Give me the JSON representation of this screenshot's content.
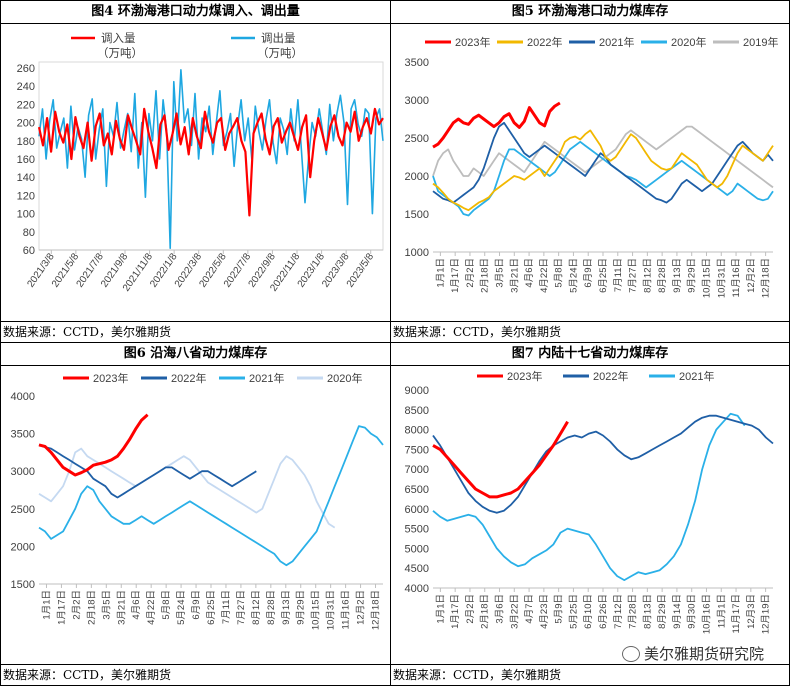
{
  "watermark": "美尔雅期货研究院",
  "chart_data": [
    {
      "type": "line",
      "title": "图4 环渤海港口动力煤调入、调出量",
      "source": "数据来源：CCTD，美尔雅期货",
      "ylim": [
        60,
        260
      ],
      "yticks": [
        "260",
        "240",
        "220",
        "200",
        "180",
        "160",
        "140",
        "120",
        "100",
        "80",
        "60"
      ],
      "xticks": [
        "2021/3/8",
        "2021/5/8",
        "2021/7/8",
        "2021/9/8",
        "2021/11/8",
        "2022/1/8",
        "2022/3/8",
        "2022/5/8",
        "2022/7/8",
        "2022/9/8",
        "2022/11/8",
        "2023/1/8",
        "2023/3/8",
        "2023/5/8"
      ],
      "legend": [
        {
          "label": "调入量",
          "unit": "（万吨）",
          "color": "#ff0000"
        },
        {
          "label": "调出量",
          "unit": "（万吨）",
          "color": "#1ea7e1"
        }
      ],
      "series": [
        {
          "name": "调入量",
          "color": "#ff0000",
          "width": 2.2,
          "values": [
            195,
            175,
            205,
            168,
            212,
            190,
            178,
            198,
            160,
            206,
            185,
            172,
            200,
            158,
            196,
            210,
            175,
            188,
            165,
            202,
            182,
            170,
            208,
            193,
            180,
            165,
            215,
            190,
            172,
            150,
            198,
            208,
            170,
            188,
            210,
            176,
            195,
            165,
            205,
            185,
            172,
            212,
            190,
            178,
            200,
            205,
            170,
            188,
            196,
            205,
            180,
            168,
            98,
            188,
            200,
            210,
            182,
            165,
            196,
            205,
            178,
            190,
            200,
            185,
            170,
            195,
            208,
            140,
            180,
            205,
            188,
            170,
            196,
            208,
            185,
            175,
            200,
            190,
            212,
            180,
            195,
            205,
            188,
            215,
            198,
            205
          ]
        },
        {
          "name": "调出量",
          "color": "#1ea7e1",
          "width": 1.6,
          "values": [
            185,
            215,
            160,
            202,
            225,
            172,
            190,
            205,
            150,
            218,
            170,
            195,
            182,
            140,
            208,
            226,
            160,
            193,
            215,
            130,
            200,
            185,
            222,
            172,
            192,
            210,
            168,
            232,
            150,
            200,
            118,
            210,
            180,
            235,
            160,
            225,
            190,
            62,
            245,
            180,
            258,
            200,
            215,
            175,
            232,
            160,
            205,
            190,
            218,
            165,
            200,
            235,
            175,
            190,
            210,
            152,
            196,
            225,
            180,
            205,
            160,
            218,
            190,
            170,
            203,
            225,
            178,
            155,
            205,
            192,
            165,
            215,
            180,
            225,
            170,
            112,
            160,
            200,
            185,
            215,
            190,
            165,
            220,
            180,
            210,
            230,
            200,
            110,
            215,
            225,
            198,
            185,
            215,
            210,
            100,
            205,
            215,
            180
          ]
        }
      ]
    },
    {
      "type": "line",
      "title": "图5 环渤海港口动力煤库存",
      "source": "数据来源：CCTD，美尔雅期货",
      "ylim": [
        1000,
        3500
      ],
      "yticks": [
        "3500",
        "3000",
        "2500",
        "2000",
        "1500",
        "1000"
      ],
      "xticks": [
        "1月1日",
        "1月17日",
        "2月2日",
        "2月18日",
        "3月5日",
        "3月21日",
        "4月6日",
        "4月22日",
        "5月8日",
        "5月24日",
        "6月9日",
        "6月25日",
        "7月11日",
        "7月27日",
        "8月12日",
        "8月28日",
        "9月13日",
        "9月29日",
        "10月15日",
        "10月31日",
        "11月16日",
        "12月2日",
        "12月18日"
      ],
      "series": [
        {
          "name": "2023年",
          "color": "#ff0000",
          "width": 3,
          "values": [
            2380,
            2420,
            2500,
            2600,
            2700,
            2750,
            2700,
            2680,
            2760,
            2800,
            2750,
            2700,
            2650,
            2700,
            2780,
            2820,
            2700,
            2640,
            2720,
            2900,
            2800,
            2700,
            2660,
            2850,
            2920,
            2960
          ]
        },
        {
          "name": "2022年",
          "color": "#f2b800",
          "width": 1.8,
          "values": [
            1900,
            1850,
            1780,
            1700,
            1650,
            1620,
            1580,
            1550,
            1600,
            1650,
            1680,
            1720,
            1800,
            1850,
            1900,
            1950,
            2000,
            1980,
            1950,
            2000,
            2050,
            2100,
            2000,
            2100,
            2200,
            2300,
            2450,
            2500,
            2520,
            2480,
            2550,
            2600,
            2500,
            2400,
            2250,
            2200,
            2250,
            2350,
            2450,
            2550,
            2500,
            2400,
            2300,
            2200,
            2150,
            2100,
            2080,
            2100,
            2200,
            2300,
            2250,
            2200,
            2150,
            2050,
            1950,
            1900,
            1850,
            1900,
            2000,
            2150,
            2300,
            2400,
            2350,
            2300,
            2250,
            2200,
            2300,
            2400
          ]
        },
        {
          "name": "2021年",
          "color": "#1f5fa6",
          "width": 1.8,
          "values": [
            1800,
            1750,
            1700,
            1680,
            1650,
            1700,
            1750,
            1800,
            1850,
            1950,
            2100,
            2300,
            2500,
            2650,
            2700,
            2600,
            2500,
            2400,
            2300,
            2250,
            2300,
            2350,
            2400,
            2350,
            2300,
            2250,
            2200,
            2150,
            2100,
            2050,
            2000,
            2100,
            2200,
            2300,
            2250,
            2150,
            2100,
            2050,
            2000,
            1950,
            1900,
            1850,
            1800,
            1750,
            1700,
            1680,
            1650,
            1700,
            1800,
            1900,
            1950,
            1900,
            1850,
            1800,
            1850,
            1900,
            2000,
            2100,
            2200,
            2300,
            2400,
            2450,
            2380,
            2300,
            2250,
            2200,
            2280,
            2200
          ]
        },
        {
          "name": "2020年",
          "color": "#2ab0e8",
          "width": 1.8,
          "values": [
            2000,
            1800,
            1750,
            1700,
            1650,
            1600,
            1500,
            1480,
            1550,
            1600,
            1650,
            1700,
            1800,
            2000,
            2200,
            2350,
            2350,
            2300,
            2250,
            2200,
            2150,
            2100,
            2050,
            2000,
            2050,
            2150,
            2250,
            2350,
            2400,
            2450,
            2400,
            2350,
            2300,
            2250,
            2200,
            2150,
            2100,
            2050,
            2000,
            1980,
            1950,
            1900,
            1850,
            1900,
            1950,
            2000,
            2050,
            2100,
            2150,
            2200,
            2150,
            2100,
            2050,
            2000,
            1950,
            1900,
            1850,
            1800,
            1750,
            1800,
            1900,
            1850,
            1800,
            1750,
            1700,
            1680,
            1700,
            1800
          ]
        },
        {
          "name": "2019年",
          "color": "#bdbdbd",
          "width": 1.8,
          "values": [
            2000,
            2200,
            2300,
            2350,
            2200,
            2100,
            2000,
            2000,
            2100,
            2050,
            2000,
            2100,
            2200,
            2300,
            2250,
            2200,
            2150,
            2100,
            2050,
            2150,
            2250,
            2350,
            2450,
            2400,
            2350,
            2300,
            2250,
            2200,
            2150,
            2100,
            2050,
            2100,
            2150,
            2200,
            2250,
            2300,
            2350,
            2450,
            2550,
            2600,
            2550,
            2500,
            2450,
            2400,
            2350,
            2400,
            2450,
            2500,
            2550,
            2600,
            2650,
            2650,
            2600,
            2550,
            2500,
            2450,
            2400,
            2350,
            2300,
            2250,
            2200,
            2150,
            2100,
            2050,
            2000,
            1950,
            1900,
            1850
          ]
        }
      ]
    },
    {
      "type": "line",
      "title": "图6 沿海八省动力煤库存",
      "source": "数据来源：CCTD，美尔雅期货",
      "ylim": [
        1500,
        4000
      ],
      "yticks": [
        "4000",
        "3500",
        "3000",
        "2500",
        "2000",
        "1500"
      ],
      "xticks": [
        "1月1日",
        "1月17日",
        "2月2日",
        "2月18日",
        "3月5日",
        "3月21日",
        "4月6日",
        "4月22日",
        "5月8日",
        "5月24日",
        "6月9日",
        "6月25日",
        "7月11日",
        "7月27日",
        "8月12日",
        "8月28日",
        "9月13日",
        "9月29日",
        "10月15日",
        "10月31日",
        "11月16日",
        "12月2日",
        "12月18日"
      ],
      "series": [
        {
          "name": "2023年",
          "color": "#ff0000",
          "width": 3,
          "values": [
            3350,
            3330,
            3250,
            3150,
            3050,
            3000,
            2950,
            2980,
            3020,
            3080,
            3100,
            3120,
            3150,
            3200,
            3300,
            3420,
            3560,
            3680,
            3750
          ]
        },
        {
          "name": "2022年",
          "color": "#1f5fa6",
          "width": 1.8,
          "values": [
            3350,
            3320,
            3300,
            3250,
            3200,
            3150,
            3100,
            3050,
            3000,
            2900,
            2850,
            2800,
            2700,
            2650,
            2700,
            2750,
            2800,
            2850,
            2900,
            2950,
            3000,
            3050,
            3050,
            3000,
            2950,
            2900,
            2950,
            3000,
            3000,
            2950,
            2900,
            2850,
            2800,
            2850,
            2900,
            2950,
            3000
          ]
        },
        {
          "name": "2021年",
          "color": "#2ab0e8",
          "width": 1.8,
          "values": [
            2250,
            2200,
            2100,
            2150,
            2200,
            2350,
            2500,
            2700,
            2800,
            2750,
            2600,
            2500,
            2400,
            2350,
            2300,
            2300,
            2350,
            2400,
            2350,
            2300,
            2350,
            2400,
            2450,
            2500,
            2550,
            2600,
            2550,
            2500,
            2450,
            2400,
            2350,
            2300,
            2250,
            2200,
            2150,
            2100,
            2050,
            2000,
            1950,
            1900,
            1800,
            1750,
            1800,
            1900,
            2000,
            2100,
            2200,
            2400,
            2600,
            2800,
            3000,
            3200,
            3400,
            3600,
            3580,
            3500,
            3450,
            3350
          ]
        },
        {
          "name": "2020年",
          "color": "#c5d9f1",
          "width": 1.8,
          "values": [
            2700,
            2650,
            2600,
            2700,
            2800,
            3000,
            3250,
            3300,
            3200,
            3150,
            3100,
            3050,
            3000,
            2950,
            2900,
            2850,
            2800,
            2850,
            2900,
            2950,
            3000,
            3050,
            3100,
            3150,
            3200,
            3150,
            3050,
            2950,
            2850,
            2800,
            2750,
            2700,
            2650,
            2600,
            2550,
            2500,
            2450,
            2500,
            2700,
            2900,
            3100,
            3200,
            3150,
            3050,
            2950,
            2800,
            2600,
            2450,
            2300,
            2250
          ]
        }
      ]
    },
    {
      "type": "line",
      "title": "图7 内陆十七省动力煤库存",
      "source": "数据来源：CCTD，美尔雅期货",
      "ylim": [
        4000,
        9000
      ],
      "yticks": [
        "9000",
        "8500",
        "8000",
        "7500",
        "7000",
        "6500",
        "6000",
        "5500",
        "5000",
        "4500",
        "4000"
      ],
      "xticks": [
        "1月1日",
        "1月17日",
        "2月2日",
        "2月18日",
        "3月6日",
        "3月22日",
        "4月7日",
        "4月23日",
        "5月9日",
        "5月25日",
        "6月10日",
        "6月26日",
        "7月12日",
        "7月28日",
        "8月13日",
        "8月29日",
        "9月14日",
        "9月30日",
        "10月16日",
        "11月1日",
        "11月17日",
        "12月3日",
        "12月19日"
      ],
      "series": [
        {
          "name": "2023年",
          "color": "#ff0000",
          "width": 3,
          "values": [
            7600,
            7500,
            7300,
            7100,
            6900,
            6700,
            6500,
            6400,
            6300,
            6300,
            6350,
            6400,
            6500,
            6700,
            6900,
            7100,
            7350,
            7600,
            7900,
            8200
          ]
        },
        {
          "name": "2022年",
          "color": "#1f5fa6",
          "width": 1.8,
          "values": [
            7850,
            7600,
            7300,
            7000,
            6700,
            6400,
            6200,
            6050,
            5950,
            5900,
            5950,
            6100,
            6300,
            6600,
            6900,
            7200,
            7450,
            7600,
            7700,
            7800,
            7850,
            7800,
            7900,
            7950,
            7850,
            7700,
            7500,
            7350,
            7250,
            7300,
            7400,
            7500,
            7600,
            7700,
            7800,
            7900,
            8050,
            8200,
            8300,
            8350,
            8350,
            8300,
            8250,
            8200,
            8150,
            8100,
            8000,
            7800,
            7650
          ]
        },
        {
          "name": "2021年",
          "color": "#2ab0e8",
          "width": 1.8,
          "values": [
            5950,
            5800,
            5700,
            5750,
            5800,
            5850,
            5800,
            5600,
            5300,
            5000,
            4800,
            4650,
            4550,
            4600,
            4750,
            4850,
            4950,
            5100,
            5400,
            5500,
            5450,
            5400,
            5350,
            5100,
            4800,
            4500,
            4300,
            4200,
            4300,
            4400,
            4350,
            4400,
            4450,
            4600,
            4800,
            5100,
            5600,
            6200,
            7000,
            7600,
            8000,
            8200,
            8400,
            8350,
            8100
          ]
        }
      ]
    }
  ]
}
